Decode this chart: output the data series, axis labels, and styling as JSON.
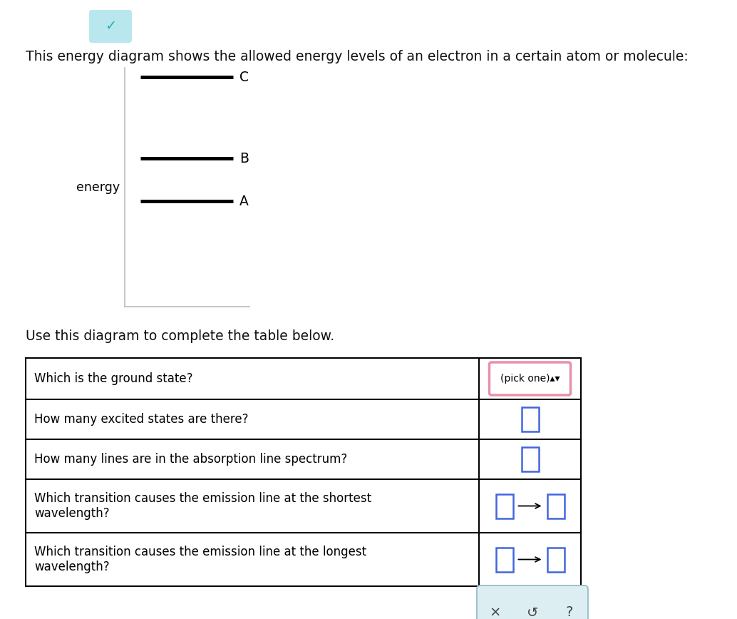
{
  "bg_color": "#ffffff",
  "title_text": "This energy diagram shows the allowed energy levels of an electron in a certain atom or molecule:",
  "title_fontsize": 13.5,
  "energy_label": "energy",
  "use_diagram_text": "Use this diagram to complete the table below.",
  "chevron_color": "#b8e8ee",
  "chevron_check_color": "#2aa8c0",
  "pick_one_border_color": "#e890a8",
  "input_box_border_color": "#4466dd",
  "bottom_bar_color": "#ddeef2",
  "bottom_bar_border_color": "#99bbcc",
  "table_text_fontsize": 12,
  "table_rows": [
    {
      "question": "Which is the ground state?",
      "answer_type": "pick_one"
    },
    {
      "question": "How many excited states are there?",
      "answer_type": "input_box"
    },
    {
      "question": "How many lines are in the absorption line spectrum?",
      "answer_type": "input_box"
    },
    {
      "question": "Which transition causes the emission line at the shortest\nwavelength?",
      "answer_type": "transition"
    },
    {
      "question": "Which transition causes the emission line at the longest\nwavelength?",
      "answer_type": "transition"
    }
  ]
}
